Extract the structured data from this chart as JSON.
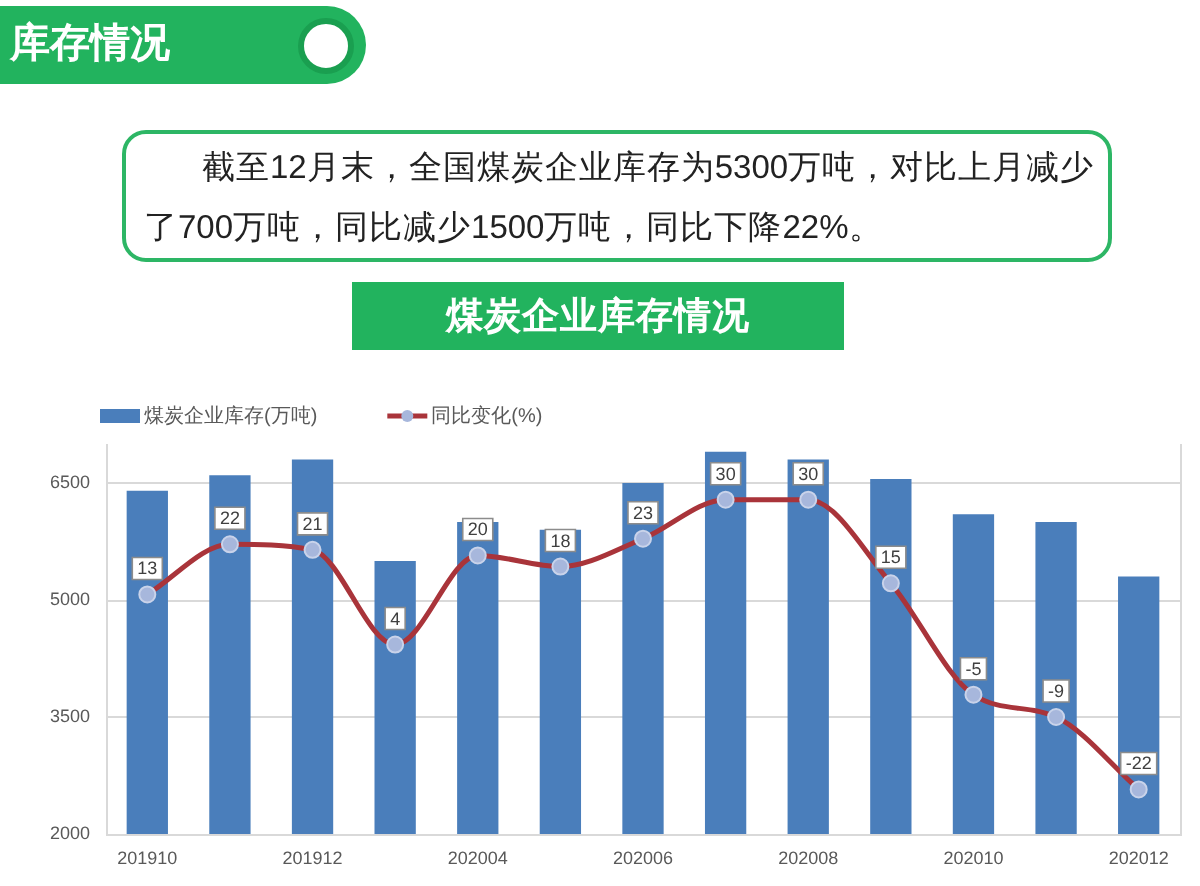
{
  "chart_data": {
    "type": "bar",
    "title": "煤炭企业库存情况",
    "annotations": [
      "库存情况",
      "截至12月末，全国煤炭企业库存为5300万吨，对比上月减少了700万吨，同比减少1500万吨，同比下降22%。"
    ],
    "categories": [
      "201910",
      null,
      "201912",
      null,
      "202004",
      null,
      "202006",
      null,
      "202008",
      null,
      "202010",
      null,
      "202012"
    ],
    "series": [
      {
        "name": "煤炭企业库存(万吨)",
        "color": "#4a7ebb",
        "values": [
          6400,
          6600,
          6800,
          5500,
          6000,
          5900,
          6500,
          6900,
          6800,
          6550,
          6100,
          6000,
          5300
        ]
      },
      {
        "name": "同比变化(%)",
        "type": "line",
        "axis": "y2",
        "color": "#a9343a",
        "values": [
          13,
          22,
          21,
          4,
          20,
          18,
          23,
          30,
          30,
          15,
          -5,
          -9,
          -22
        ],
        "value_labels": [
          "13",
          "22",
          "21",
          "4",
          "20",
          "18",
          "23",
          "30",
          "30",
          "15",
          "-5",
          "-9",
          "-22"
        ]
      }
    ],
    "ylim": [
      2000,
      7000
    ],
    "yticks": [
      2000,
      3500,
      5000,
      6500
    ],
    "y2lim": [
      -30,
      40
    ],
    "tick_labels": "xy",
    "grid": "y",
    "legend": "top",
    "marker": "circle"
  }
}
